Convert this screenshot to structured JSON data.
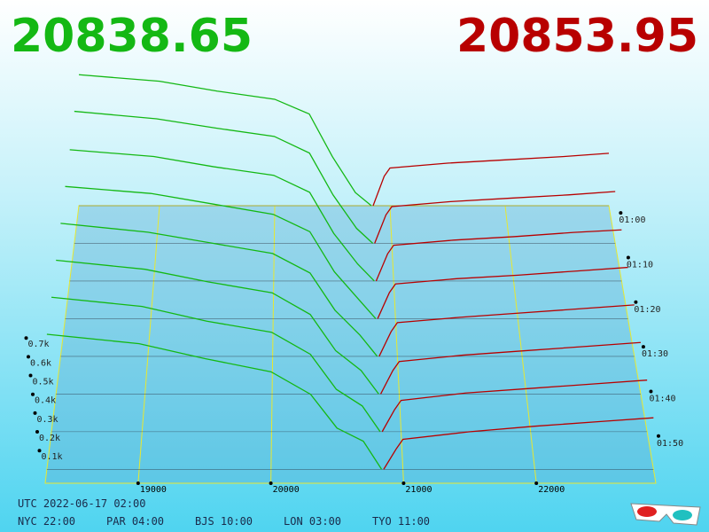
{
  "chart_data": {
    "type": "depth3d",
    "bid": "20838.65",
    "ask": "20853.95",
    "bid_color": "#14b814",
    "ask_color": "#b80000",
    "xlim": [
      18300,
      22900
    ],
    "xticks": [
      19000,
      20000,
      21000,
      22000
    ],
    "depth_ticks": [
      {
        "value": 100,
        "label": "0.1k"
      },
      {
        "value": 200,
        "label": "0.2k"
      },
      {
        "value": 300,
        "label": "0.3k"
      },
      {
        "value": 400,
        "label": "0.4k"
      },
      {
        "value": 500,
        "label": "0.5k"
      },
      {
        "value": 600,
        "label": "0.6k"
      },
      {
        "value": 700,
        "label": "0.7k"
      }
    ],
    "time_ticks": [
      "01:00",
      "01:10",
      "01:20",
      "01:30",
      "01:40",
      "01:50"
    ],
    "bid_prices": [
      18300,
      19000,
      19500,
      20000,
      20300,
      20500,
      20700,
      20838.65
    ],
    "ask_prices": [
      20853.95,
      20950,
      21000,
      21500,
      22000,
      22500,
      22900
    ],
    "snapshots": [
      {
        "bids": [
          800,
          760,
          700,
          650,
          560,
          300,
          80,
          0
        ],
        "asks": [
          0,
          180,
          230,
          260,
          280,
          300,
          320
        ]
      },
      {
        "bids": [
          790,
          745,
          690,
          640,
          540,
          290,
          90,
          0
        ],
        "asks": [
          0,
          170,
          220,
          250,
          270,
          290,
          310
        ]
      },
      {
        "bids": [
          770,
          730,
          670,
          620,
          520,
          280,
          100,
          0
        ],
        "asks": [
          0,
          160,
          210,
          240,
          260,
          285,
          300
        ]
      },
      {
        "bids": [
          760,
          720,
          660,
          600,
          500,
          270,
          110,
          0
        ],
        "asks": [
          0,
          150,
          200,
          230,
          250,
          275,
          295
        ]
      },
      {
        "bids": [
          750,
          700,
          640,
          580,
          470,
          260,
          120,
          0
        ],
        "asks": [
          0,
          140,
          190,
          220,
          245,
          270,
          290
        ]
      },
      {
        "bids": [
          740,
          690,
          620,
          560,
          440,
          240,
          130,
          0
        ],
        "asks": [
          0,
          130,
          180,
          215,
          240,
          265,
          285
        ]
      },
      {
        "bids": [
          730,
          680,
          600,
          540,
          420,
          230,
          140,
          0
        ],
        "asks": [
          0,
          120,
          170,
          210,
          235,
          260,
          280
        ]
      },
      {
        "bids": [
          720,
          670,
          590,
          520,
          400,
          220,
          150,
          0
        ],
        "asks": [
          0,
          110,
          160,
          200,
          230,
          255,
          275
        ]
      }
    ],
    "footer_utc": "UTC 2022-06-17 02:00",
    "footer_zones": [
      "NYC 22:00",
      "PAR 04:00",
      "BJS 10:00",
      "LON 03:00",
      "TYO 11:00"
    ]
  }
}
